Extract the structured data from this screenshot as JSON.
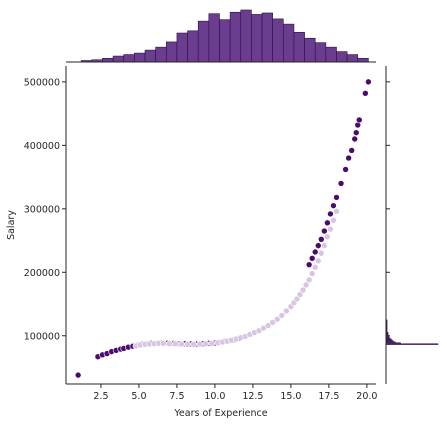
{
  "chart_data": {
    "type": "scatter",
    "xlabel": "Years of Experience",
    "ylabel": "Salary",
    "xlim": [
      0.2,
      20.6
    ],
    "ylim": [
      24000,
      525000
    ],
    "grid": false,
    "x_ticks": [
      "2.5",
      "5.0",
      "7.5",
      "10.0",
      "12.5",
      "15.0",
      "17.5",
      "20.0"
    ],
    "y_ticks": [
      "100000",
      "200000",
      "300000",
      "400000",
      "500000"
    ],
    "colors": {
      "dark": "#4b0a70",
      "light": "#d8c5e2",
      "hist": "#6a3d8f",
      "hist_edge": "#2e1043"
    },
    "series": [
      {
        "color_role": "dark",
        "points": [
          [
            1.0,
            38000
          ],
          [
            2.3,
            67000
          ],
          [
            2.6,
            70000
          ],
          [
            2.9,
            72000
          ],
          [
            3.2,
            75000
          ],
          [
            3.5,
            77000
          ],
          [
            3.8,
            79000
          ],
          [
            4.0,
            80000
          ],
          [
            4.3,
            82000
          ],
          [
            4.6,
            83500
          ],
          [
            4.9,
            85000
          ],
          [
            5.2,
            86500
          ],
          [
            5.5,
            87000
          ],
          [
            5.8,
            88000
          ],
          [
            6.2,
            88000
          ],
          [
            6.5,
            88500
          ],
          [
            6.9,
            88500
          ],
          [
            7.3,
            88000
          ],
          [
            7.7,
            87500
          ],
          [
            8.0,
            87500
          ],
          [
            8.4,
            87000
          ],
          [
            8.8,
            87000
          ],
          [
            9.2,
            87500
          ],
          [
            9.6,
            88000
          ],
          [
            10.0,
            88500
          ],
          [
            10.3,
            89500
          ],
          [
            10.6,
            91000
          ],
          [
            11.0,
            92500
          ],
          [
            11.3,
            94000
          ],
          [
            11.6,
            96000
          ],
          [
            16.2,
            212000
          ],
          [
            16.4,
            222000
          ],
          [
            16.6,
            232000
          ],
          [
            16.8,
            242000
          ],
          [
            17.0,
            252000
          ],
          [
            17.2,
            265000
          ],
          [
            17.4,
            278000
          ],
          [
            17.6,
            292000
          ],
          [
            17.8,
            305000
          ],
          [
            18.0,
            318000
          ],
          [
            18.3,
            340000
          ],
          [
            18.6,
            362000
          ],
          [
            18.8,
            380000
          ],
          [
            19.0,
            392000
          ],
          [
            19.2,
            410000
          ],
          [
            19.3,
            420000
          ],
          [
            19.4,
            432000
          ],
          [
            19.5,
            440000
          ],
          [
            19.9,
            482000
          ],
          [
            20.1,
            500000
          ]
        ]
      },
      {
        "color_role": "light",
        "points": [
          [
            4.8,
            84000
          ],
          [
            5.1,
            85500
          ],
          [
            5.4,
            86500
          ],
          [
            5.7,
            87000
          ],
          [
            6.0,
            87500
          ],
          [
            6.3,
            88000
          ],
          [
            6.6,
            88000
          ],
          [
            7.0,
            87500
          ],
          [
            7.4,
            87500
          ],
          [
            7.8,
            87000
          ],
          [
            8.2,
            86500
          ],
          [
            8.6,
            86500
          ],
          [
            9.0,
            87000
          ],
          [
            9.4,
            87500
          ],
          [
            9.8,
            88000
          ],
          [
            10.2,
            89000
          ],
          [
            10.5,
            90000
          ],
          [
            10.8,
            91500
          ],
          [
            11.1,
            93000
          ],
          [
            11.4,
            95000
          ],
          [
            11.7,
            97000
          ],
          [
            12.0,
            99000
          ],
          [
            12.3,
            102000
          ],
          [
            12.6,
            105000
          ],
          [
            12.9,
            108000
          ],
          [
            13.2,
            112000
          ],
          [
            13.5,
            116000
          ],
          [
            13.8,
            121000
          ],
          [
            14.1,
            126000
          ],
          [
            14.4,
            132000
          ],
          [
            14.7,
            139000
          ],
          [
            15.0,
            146000
          ],
          [
            15.2,
            152000
          ],
          [
            15.4,
            158000
          ],
          [
            15.6,
            165000
          ],
          [
            15.8,
            172000
          ],
          [
            16.0,
            180000
          ],
          [
            16.2,
            188000
          ],
          [
            16.4,
            198000
          ],
          [
            16.6,
            208000
          ],
          [
            16.8,
            218000
          ],
          [
            17.0,
            230000
          ],
          [
            17.2,
            242000
          ],
          [
            17.4,
            256000
          ],
          [
            17.6,
            268000
          ],
          [
            17.8,
            282000
          ],
          [
            18.0,
            296000
          ]
        ]
      }
    ],
    "top_histogram": {
      "bins": [
        1.2,
        1.9,
        2.6,
        3.3,
        4.0,
        4.7,
        5.4,
        6.1,
        6.8,
        7.5,
        8.2,
        8.9,
        9.6,
        10.3,
        11.0,
        11.7,
        12.4,
        13.1,
        13.8,
        14.5,
        15.2,
        15.9,
        16.6,
        17.3,
        18.0,
        18.7,
        19.4,
        20.1
      ],
      "counts": [
        2,
        3,
        5,
        8,
        10,
        12,
        16,
        20,
        27,
        39,
        42,
        55,
        65,
        57,
        67,
        70,
        64,
        66,
        58,
        51,
        40,
        32,
        26,
        20,
        14,
        10,
        5
      ]
    },
    "right_histogram": {
      "bins": [
        86000,
        87500,
        89000,
        90500,
        92000,
        93500,
        95000,
        96500,
        98000,
        99500,
        101000,
        102500,
        104000,
        105500,
        107000,
        108500,
        110000,
        111500,
        113000,
        114500,
        116000,
        117500,
        119000,
        120500,
        122000,
        123500,
        125000
      ],
      "counts": [
        50,
        14,
        9,
        7,
        6,
        5,
        4,
        3,
        3,
        2,
        2,
        2,
        2,
        1,
        1,
        1,
        1,
        1,
        1,
        1,
        1,
        1,
        1,
        1,
        1,
        1
      ]
    }
  }
}
